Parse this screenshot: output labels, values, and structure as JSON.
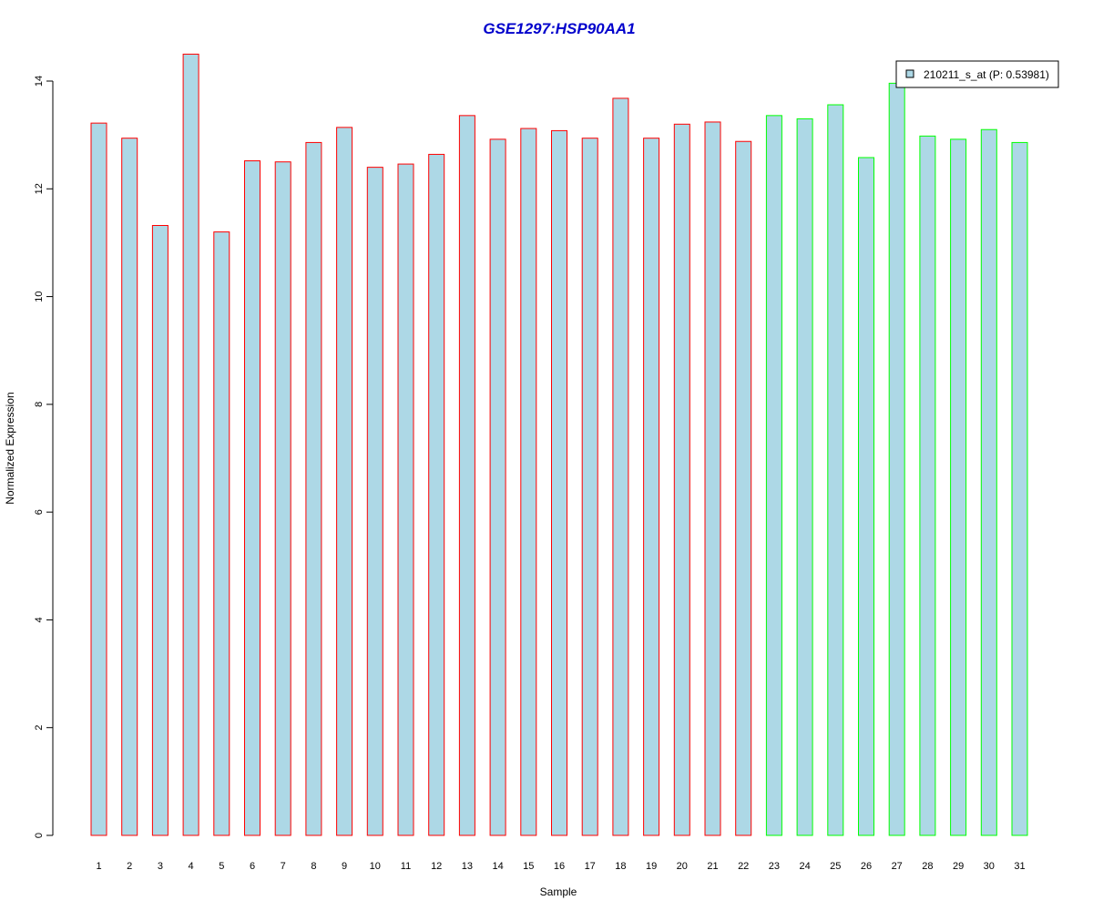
{
  "chart_data": {
    "type": "bar",
    "title": "GSE1297:HSP90AA1",
    "xlabel": "Sample",
    "ylabel": "Normalized Expression",
    "ylim": [
      0,
      14
    ],
    "y_ticks": [
      0,
      2,
      4,
      6,
      8,
      10,
      12,
      14
    ],
    "grid": false,
    "legend_position": "top-right",
    "legend": {
      "label": "210211_s_at (P: 0.53981)"
    },
    "categories": [
      "1",
      "2",
      "3",
      "4",
      "5",
      "6",
      "7",
      "8",
      "9",
      "10",
      "11",
      "12",
      "13",
      "14",
      "15",
      "16",
      "17",
      "18",
      "19",
      "20",
      "21",
      "22",
      "23",
      "24",
      "25",
      "26",
      "27",
      "28",
      "29",
      "30",
      "31"
    ],
    "values": [
      13.22,
      12.94,
      11.32,
      14.5,
      11.2,
      12.52,
      12.5,
      12.86,
      13.14,
      12.4,
      12.46,
      12.64,
      13.36,
      12.92,
      13.12,
      13.08,
      12.94,
      13.68,
      12.94,
      13.2,
      13.24,
      12.88,
      13.36,
      13.3,
      13.56,
      12.58,
      13.96,
      12.98,
      12.92,
      13.1,
      12.86
    ],
    "bar_fill": "#add8e6",
    "border_colors": [
      "#ff0000",
      "#ff0000",
      "#ff0000",
      "#ff0000",
      "#ff0000",
      "#ff0000",
      "#ff0000",
      "#ff0000",
      "#ff0000",
      "#ff0000",
      "#ff0000",
      "#ff0000",
      "#ff0000",
      "#ff0000",
      "#ff0000",
      "#ff0000",
      "#ff0000",
      "#ff0000",
      "#ff0000",
      "#ff0000",
      "#ff0000",
      "#ff0000",
      "#00ff00",
      "#00ff00",
      "#00ff00",
      "#00ff00",
      "#00ff00",
      "#00ff00",
      "#00ff00",
      "#00ff00",
      "#00ff00"
    ],
    "title_color": "#0000cc"
  }
}
